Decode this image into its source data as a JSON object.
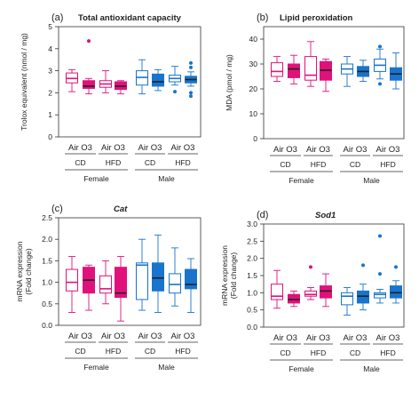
{
  "colors": {
    "female": "#e0117a",
    "male": "#1874cd",
    "outline": "#555555"
  },
  "chart_data": [
    {
      "type": "box",
      "panel": "(a)",
      "title": "Total antioxidant capacity",
      "title_italic": false,
      "ylabel": "Trolox equivalent (nmol / mg)",
      "ylim": [
        0,
        5
      ],
      "yticks": [
        "0",
        "1",
        "2",
        "3",
        "4",
        "5"
      ],
      "ytick_values": [
        0,
        1,
        2,
        3,
        4,
        5
      ],
      "group_label": "Air O3",
      "diets": [
        "CD",
        "HFD"
      ],
      "sexes": [
        "Female",
        "Male"
      ],
      "boxes": [
        {
          "sex": "Female",
          "diet": "CD",
          "group": "Air",
          "min": 2.05,
          "q1": 2.45,
          "median": 2.65,
          "q3": 2.9,
          "max": 3.05,
          "outliers": []
        },
        {
          "sex": "Female",
          "diet": "CD",
          "group": "O3",
          "min": 1.95,
          "q1": 2.2,
          "median": 2.3,
          "q3": 2.55,
          "max": 2.65,
          "outliers": [
            4.35
          ]
        },
        {
          "sex": "Female",
          "diet": "HFD",
          "group": "Air",
          "min": 2.0,
          "q1": 2.25,
          "median": 2.4,
          "q3": 2.55,
          "max": 3.0,
          "outliers": []
        },
        {
          "sex": "Female",
          "diet": "HFD",
          "group": "O3",
          "min": 1.95,
          "q1": 2.15,
          "median": 2.3,
          "q3": 2.5,
          "max": 2.55,
          "outliers": []
        },
        {
          "sex": "Male",
          "diet": "CD",
          "group": "Air",
          "min": 1.95,
          "q1": 2.35,
          "median": 2.7,
          "q3": 3.0,
          "max": 3.5,
          "outliers": []
        },
        {
          "sex": "Male",
          "diet": "CD",
          "group": "O3",
          "min": 2.1,
          "q1": 2.3,
          "median": 2.5,
          "q3": 2.85,
          "max": 3.05,
          "outliers": []
        },
        {
          "sex": "Male",
          "diet": "HFD",
          "group": "Air",
          "min": 2.35,
          "q1": 2.5,
          "median": 2.65,
          "q3": 2.8,
          "max": 3.2,
          "outliers": [
            2.05
          ]
        },
        {
          "sex": "Male",
          "diet": "HFD",
          "group": "O3",
          "min": 2.3,
          "q1": 2.45,
          "median": 2.6,
          "q3": 2.75,
          "max": 2.95,
          "outliers": [
            3.35,
            3.15,
            2.0,
            1.85
          ]
        }
      ]
    },
    {
      "type": "box",
      "panel": "(b)",
      "title": "Lipid peroxidation",
      "title_italic": false,
      "ylabel": "MDA (pmol / mg)",
      "ylim": [
        0,
        45
      ],
      "yticks": [
        "0",
        "10",
        "20",
        "30",
        "40"
      ],
      "ytick_values": [
        0,
        10,
        20,
        30,
        40
      ],
      "group_label": "Air O3",
      "diets": [
        "CD",
        "HFD"
      ],
      "sexes": [
        "Female",
        "Male"
      ],
      "boxes": [
        {
          "sex": "Female",
          "diet": "CD",
          "group": "Air",
          "min": 23,
          "q1": 25,
          "median": 27,
          "q3": 30.5,
          "max": 33,
          "outliers": []
        },
        {
          "sex": "Female",
          "diet": "CD",
          "group": "O3",
          "min": 22,
          "q1": 24.5,
          "median": 28,
          "q3": 30,
          "max": 33.5,
          "outliers": []
        },
        {
          "sex": "Female",
          "diet": "HFD",
          "group": "Air",
          "min": 21,
          "q1": 23.5,
          "median": 25.5,
          "q3": 33,
          "max": 39,
          "outliers": []
        },
        {
          "sex": "Female",
          "diet": "HFD",
          "group": "O3",
          "min": 19,
          "q1": 23.5,
          "median": 27.5,
          "q3": 31,
          "max": 32,
          "outliers": []
        },
        {
          "sex": "Male",
          "diet": "CD",
          "group": "Air",
          "min": 21,
          "q1": 26,
          "median": 28,
          "q3": 30,
          "max": 33,
          "outliers": []
        },
        {
          "sex": "Male",
          "diet": "CD",
          "group": "O3",
          "min": 23,
          "q1": 25,
          "median": 27,
          "q3": 29,
          "max": 31.5,
          "outliers": []
        },
        {
          "sex": "Male",
          "diet": "HFD",
          "group": "Air",
          "min": 24,
          "q1": 27,
          "median": 29.5,
          "q3": 32,
          "max": 36,
          "outliers": [
            37,
            22
          ]
        },
        {
          "sex": "Male",
          "diet": "HFD",
          "group": "O3",
          "min": 20,
          "q1": 23.5,
          "median": 26,
          "q3": 28.5,
          "max": 34.5,
          "outliers": []
        }
      ]
    },
    {
      "type": "box",
      "panel": "(c)",
      "title": "Cat",
      "title_italic": true,
      "ylabel": "mRNA expression\n(Fold change)",
      "ylim": [
        0,
        2.5
      ],
      "yticks": [
        "0.0",
        "0.5",
        "1.0",
        "1.5",
        "2.0",
        "2.5"
      ],
      "ytick_values": [
        0,
        0.5,
        1,
        1.5,
        2,
        2.5
      ],
      "group_label": "Air O3",
      "diets": [
        "CD",
        "HFD"
      ],
      "sexes": [
        "Female",
        "Male"
      ],
      "boxes": [
        {
          "sex": "Female",
          "diet": "CD",
          "group": "Air",
          "min": 0.3,
          "q1": 0.8,
          "median": 1.0,
          "q3": 1.3,
          "max": 1.6,
          "outliers": []
        },
        {
          "sex": "Female",
          "diet": "CD",
          "group": "O3",
          "min": 0.35,
          "q1": 0.75,
          "median": 1.05,
          "q3": 1.35,
          "max": 1.4,
          "outliers": []
        },
        {
          "sex": "Female",
          "diet": "HFD",
          "group": "Air",
          "min": 0.5,
          "q1": 0.75,
          "median": 0.85,
          "q3": 1.15,
          "max": 1.5,
          "outliers": []
        },
        {
          "sex": "Female",
          "diet": "HFD",
          "group": "O3",
          "min": 0.1,
          "q1": 0.65,
          "median": 0.75,
          "q3": 1.35,
          "max": 1.6,
          "outliers": []
        },
        {
          "sex": "Male",
          "diet": "CD",
          "group": "Air",
          "min": 0.35,
          "q1": 0.6,
          "median": 1.4,
          "q3": 1.45,
          "max": 2.0,
          "outliers": []
        },
        {
          "sex": "Male",
          "diet": "CD",
          "group": "O3",
          "min": 0.3,
          "q1": 0.8,
          "median": 1.1,
          "q3": 1.45,
          "max": 2.1,
          "outliers": []
        },
        {
          "sex": "Male",
          "diet": "HFD",
          "group": "Air",
          "min": 0.45,
          "q1": 0.75,
          "median": 0.95,
          "q3": 1.2,
          "max": 1.8,
          "outliers": []
        },
        {
          "sex": "Male",
          "diet": "HFD",
          "group": "O3",
          "min": 0.3,
          "q1": 0.85,
          "median": 0.95,
          "q3": 1.3,
          "max": 1.55,
          "outliers": []
        }
      ]
    },
    {
      "type": "box",
      "panel": "(d)",
      "title": "Sod1",
      "title_italic": true,
      "ylabel": "mRNA expression\n(Fold change)",
      "ylim": [
        0,
        3.0
      ],
      "yticks": [
        "0.0",
        "0.5",
        "1.0",
        "1.5",
        "2.0",
        "2.5",
        "3.0"
      ],
      "ytick_values": [
        0,
        0.5,
        1,
        1.5,
        2,
        2.5,
        3
      ],
      "group_label": "Air O3",
      "diets": [
        "CD",
        "HFD"
      ],
      "sexes": [
        "Female",
        "Male"
      ],
      "boxes": [
        {
          "sex": "Female",
          "diet": "CD",
          "group": "Air",
          "min": 0.55,
          "q1": 0.8,
          "median": 0.9,
          "q3": 1.25,
          "max": 1.65,
          "outliers": []
        },
        {
          "sex": "Female",
          "diet": "CD",
          "group": "O3",
          "min": 0.6,
          "q1": 0.7,
          "median": 0.8,
          "q3": 0.95,
          "max": 1.05,
          "outliers": []
        },
        {
          "sex": "Female",
          "diet": "HFD",
          "group": "Air",
          "min": 0.8,
          "q1": 0.9,
          "median": 0.95,
          "q3": 1.05,
          "max": 1.15,
          "outliers": [
            1.75
          ]
        },
        {
          "sex": "Female",
          "diet": "HFD",
          "group": "O3",
          "min": 0.6,
          "q1": 0.85,
          "median": 1.05,
          "q3": 1.2,
          "max": 1.55,
          "outliers": []
        },
        {
          "sex": "Male",
          "diet": "CD",
          "group": "Air",
          "min": 0.35,
          "q1": 0.65,
          "median": 0.9,
          "q3": 1.0,
          "max": 1.15,
          "outliers": []
        },
        {
          "sex": "Male",
          "diet": "CD",
          "group": "O3",
          "min": 0.5,
          "q1": 0.7,
          "median": 0.9,
          "q3": 1.05,
          "max": 1.25,
          "outliers": [
            1.8
          ]
        },
        {
          "sex": "Male",
          "diet": "HFD",
          "group": "Air",
          "min": 0.7,
          "q1": 0.85,
          "median": 0.95,
          "q3": 1.0,
          "max": 1.1,
          "outliers": [
            2.65,
            1.55
          ]
        },
        {
          "sex": "Male",
          "diet": "HFD",
          "group": "O3",
          "min": 0.7,
          "q1": 0.85,
          "median": 1.0,
          "q3": 1.2,
          "max": 1.35,
          "outliers": [
            1.75
          ]
        }
      ]
    }
  ]
}
